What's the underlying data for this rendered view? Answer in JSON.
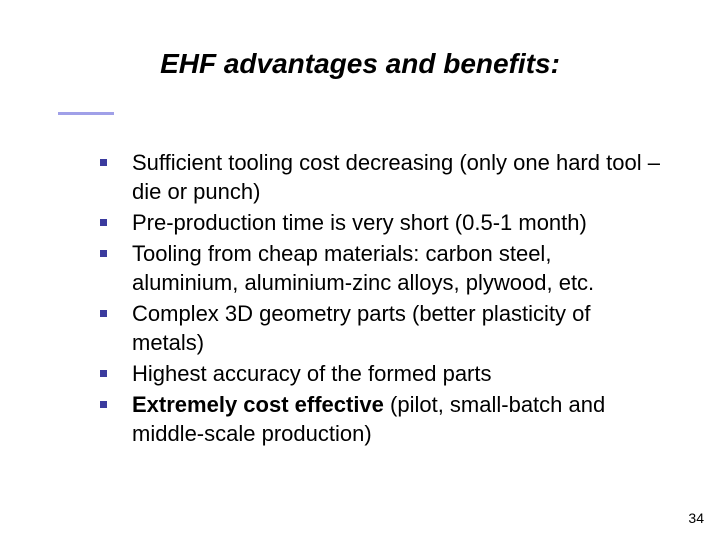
{
  "slide": {
    "title": "EHF advantages and benefits:",
    "title_fontsize": 28,
    "title_font_style": "italic bold",
    "accent_line_color": "#a0a0e8",
    "bullet_marker_color": "#3b3b9e",
    "background_color": "#ffffff",
    "text_color": "#000000",
    "body_fontsize": 22,
    "bullets": [
      {
        "text": "Sufficient tooling cost decreasing (only one hard tool – die or punch)"
      },
      {
        "text": "Pre-production time is very short (0.5-1 month)"
      },
      {
        "text": "Tooling from cheap materials: carbon steel, aluminium, aluminium-zinc alloys, plywood, etc."
      },
      {
        "text": "Complex 3D geometry parts (better plasticity of metals)"
      },
      {
        "text": "Highest accuracy of the formed parts"
      },
      {
        "html": "<b>Extremely cost effective</b> (pilot, small-batch and middle-scale production)"
      }
    ],
    "page_number": "34"
  }
}
